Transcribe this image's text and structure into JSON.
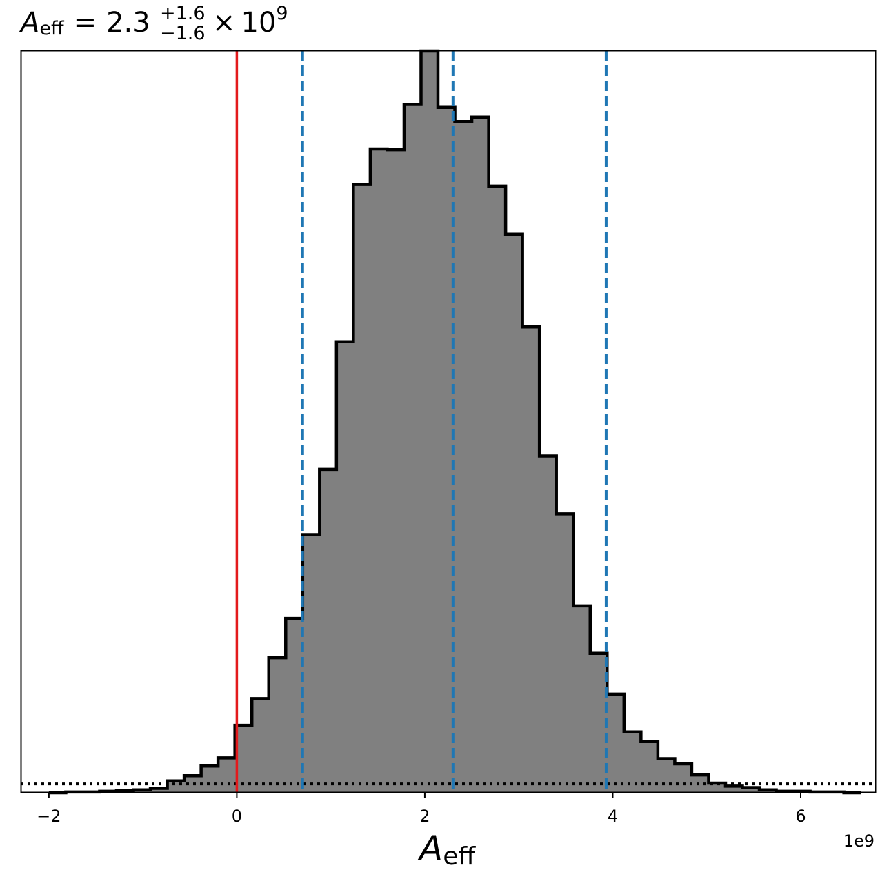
{
  "chart_data": {
    "type": "histogram",
    "title": {
      "symbol": "A",
      "symbol_sub": "eff",
      "equals": "=",
      "median": "2.3",
      "plus": "+1.6",
      "minus": "−1.6",
      "times": "×",
      "base": "10",
      "exponent": "9"
    },
    "xlabel": {
      "symbol": "A",
      "sub": "eff"
    },
    "x_offset_label": "1e9",
    "x_scale": 1000000000,
    "xlim": [
      -2.3,
      6.8
    ],
    "ylim": [
      0,
      1.0
    ],
    "xticks": [
      -2,
      0,
      2,
      4,
      6
    ],
    "xtick_labels": [
      "−2",
      "0",
      "2",
      "4",
      "6"
    ],
    "bin_edges": [
      -2.0,
      -1.82,
      -1.64,
      -1.46,
      -1.28,
      -1.1,
      -0.92,
      -0.74,
      -0.56,
      -0.38,
      -0.2,
      -0.02,
      0.16,
      0.34,
      0.52,
      0.7,
      0.88,
      1.06,
      1.24,
      1.42,
      1.6,
      1.78,
      1.96,
      2.14,
      2.32,
      2.5,
      2.68,
      2.86,
      3.04,
      3.22,
      3.4,
      3.58,
      3.76,
      3.94,
      4.12,
      4.3,
      4.48,
      4.66,
      4.84,
      5.02,
      5.2,
      5.38,
      5.56,
      5.74,
      5.92,
      6.1,
      6.28,
      6.46,
      6.64
    ],
    "counts": [
      0.0,
      0.001,
      0.001,
      0.002,
      0.003,
      0.004,
      0.006,
      0.016,
      0.023,
      0.036,
      0.047,
      0.091,
      0.127,
      0.182,
      0.235,
      0.348,
      0.436,
      0.608,
      0.82,
      0.868,
      0.867,
      0.928,
      1.0,
      0.924,
      0.905,
      0.911,
      0.818,
      0.753,
      0.628,
      0.454,
      0.376,
      0.252,
      0.188,
      0.133,
      0.082,
      0.069,
      0.046,
      0.039,
      0.024,
      0.013,
      0.009,
      0.007,
      0.004,
      0.002,
      0.002,
      0.001,
      0.001,
      0.0
    ],
    "fill_color": "#808080",
    "edge_color": "#000000",
    "vlines": [
      {
        "x": 0.0,
        "color": "#e31a1c",
        "style": "solid"
      },
      {
        "x": 0.7,
        "color": "#1f77b4",
        "style": "dashed"
      },
      {
        "x": 2.3,
        "color": "#1f77b4",
        "style": "dashed"
      },
      {
        "x": 3.93,
        "color": "#1f77b4",
        "style": "dashed"
      }
    ],
    "hline": {
      "y": 0.012,
      "color": "#000000",
      "style": "dotted"
    },
    "grid": false,
    "legend": "none"
  }
}
